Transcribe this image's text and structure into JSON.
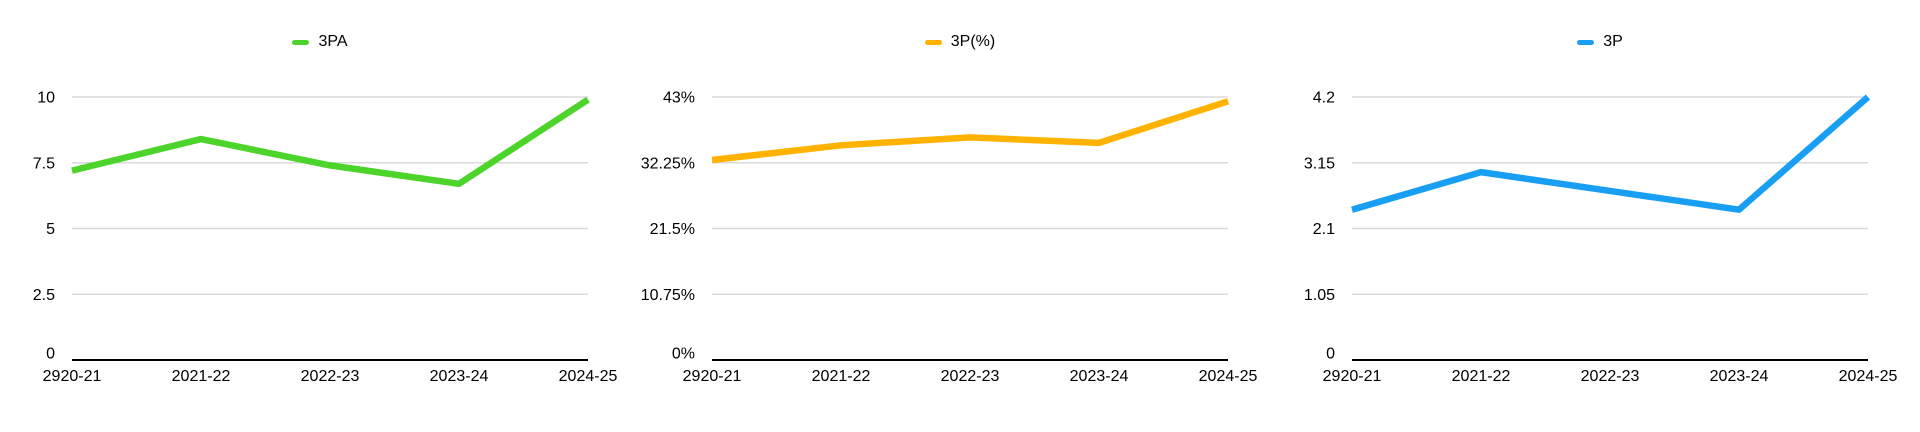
{
  "page": {
    "background": "#ffffff",
    "grid_color": "#dadada",
    "axis_color": "#000000",
    "text_color": "#000000"
  },
  "chart_data": [
    {
      "type": "line",
      "legend": "3PA",
      "color": "#4cd42a",
      "categories": [
        "2920-21",
        "2021-22",
        "2022-23",
        "2023-24",
        "2024-25"
      ],
      "values": [
        7.2,
        8.4,
        7.4,
        6.7,
        9.9
      ],
      "yticks": [
        0,
        2.5,
        5,
        7.5,
        10
      ],
      "ytick_labels": [
        "0",
        "2.5",
        "5",
        "7.5",
        "10"
      ],
      "ylim": [
        0,
        10
      ],
      "grid": true,
      "legend_position": "top-center"
    },
    {
      "type": "line",
      "legend": "3P(%)",
      "color": "#ffb300",
      "categories": [
        "2920-21",
        "2021-22",
        "2022-23",
        "2023-24",
        "2024-25"
      ],
      "values": [
        32.7,
        35.1,
        36.4,
        35.5,
        42.3
      ],
      "yticks": [
        0,
        10.75,
        21.5,
        32.25,
        43
      ],
      "ytick_labels": [
        "0%",
        "10.75%",
        "21.5%",
        "32.25%",
        "43%"
      ],
      "ylim": [
        0,
        43
      ],
      "grid": true,
      "legend_position": "top-center"
    },
    {
      "type": "line",
      "legend": "3P",
      "color": "#189ef2",
      "categories": [
        "2920-21",
        "2021-22",
        "2022-23",
        "2023-24",
        "2024-25"
      ],
      "values": [
        2.4,
        3.0,
        2.7,
        2.4,
        4.2
      ],
      "yticks": [
        0,
        1.05,
        2.1,
        3.15,
        4.2
      ],
      "ytick_labels": [
        "0",
        "1.05",
        "2.1",
        "3.15",
        "4.2"
      ],
      "ylim": [
        0,
        4.2
      ],
      "grid": true,
      "legend_position": "top-center"
    }
  ]
}
